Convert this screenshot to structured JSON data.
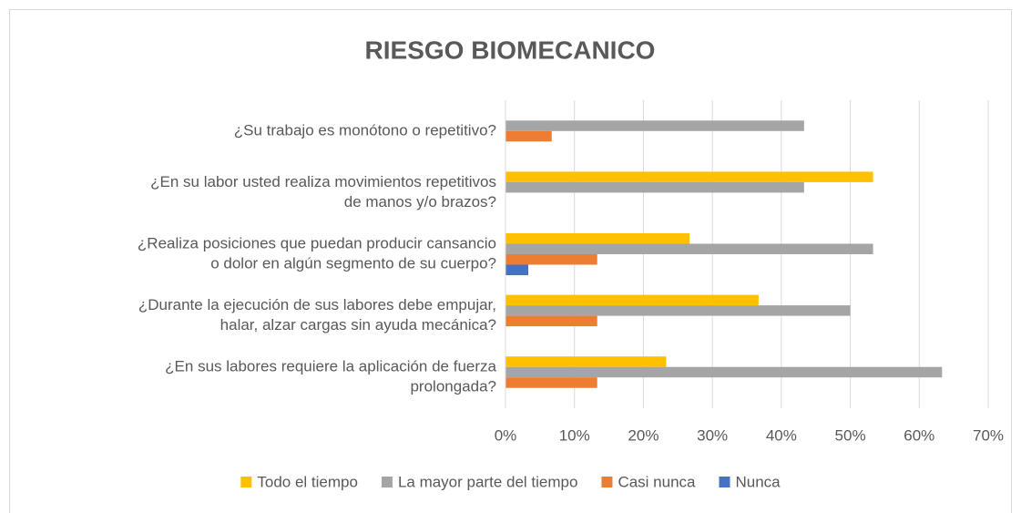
{
  "chart_data": {
    "type": "hbar",
    "title": "RIESGO BIOMECANICO",
    "categories": [
      [
        "¿Su trabajo es monótono o repetitivo?"
      ],
      [
        "¿En su labor usted realiza movimientos repetitivos",
        "de manos y/o brazos?"
      ],
      [
        "¿Realiza posiciones que puedan producir cansancio",
        "o dolor en algún segmento de su cuerpo?"
      ],
      [
        "¿Durante la ejecución de sus labores debe empujar,",
        "halar, alzar cargas sin ayuda mecánica?"
      ],
      [
        "¿En sus labores requiere la aplicación de fuerza",
        "prolongada?"
      ]
    ],
    "series": [
      {
        "name": "Todo el tiempo",
        "color": "#ffc000",
        "values": [
          0,
          53.3,
          26.7,
          36.7,
          23.3
        ]
      },
      {
        "name": "La mayor parte del tiempo",
        "color": "#a5a5a5",
        "values": [
          43.3,
          43.3,
          53.3,
          50,
          63.3
        ]
      },
      {
        "name": "Casi nunca",
        "color": "#ed7d31",
        "values": [
          6.7,
          0,
          13.3,
          13.3,
          13.3
        ]
      },
      {
        "name": "Nunca",
        "color": "#4472c4",
        "values": [
          0,
          0,
          3.3,
          0,
          0
        ]
      }
    ],
    "xlim": [
      0,
      70
    ],
    "xticks": [
      {
        "value": 0,
        "label": "0%"
      },
      {
        "value": 10,
        "label": "10%"
      },
      {
        "value": 20,
        "label": "20%"
      },
      {
        "value": 30,
        "label": "30%"
      },
      {
        "value": 40,
        "label": "40%"
      },
      {
        "value": 50,
        "label": "50%"
      },
      {
        "value": 60,
        "label": "60%"
      },
      {
        "value": 70,
        "label": "70%"
      }
    ],
    "grid": true,
    "legend": "bottom"
  }
}
